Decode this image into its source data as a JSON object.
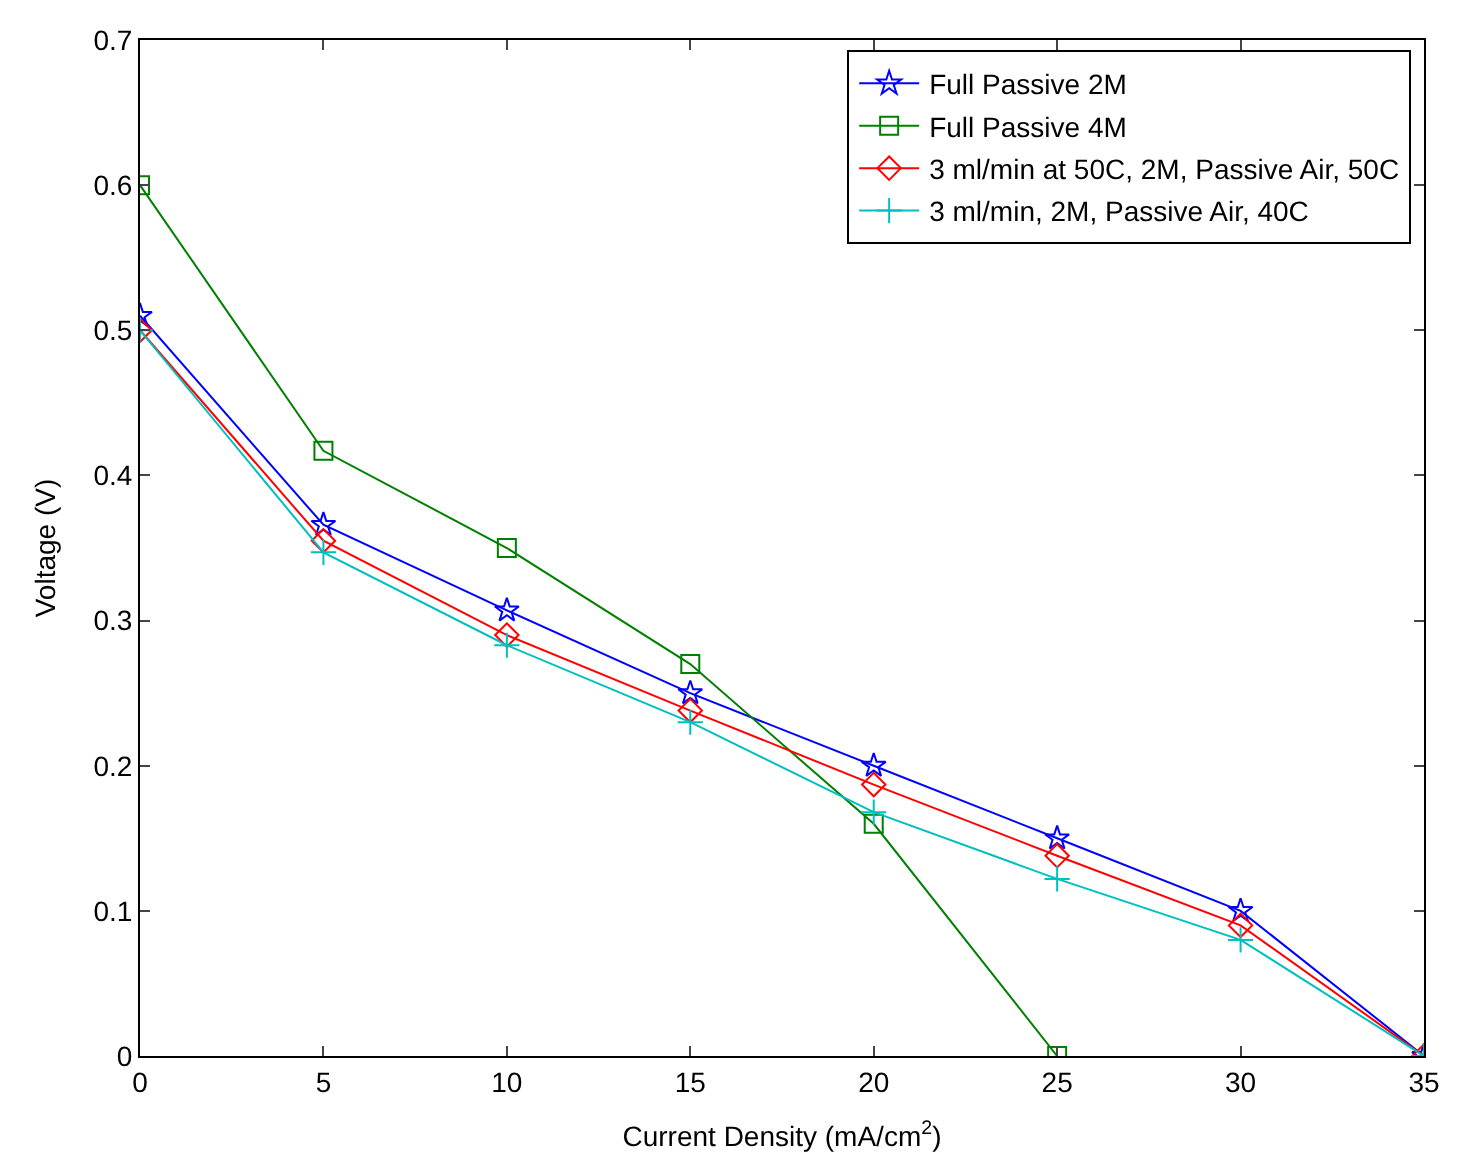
{
  "chart_data": {
    "type": "line",
    "xlabel": "Current Density (mA/cm$^{2}$)",
    "ylabel": "Voltage (V)",
    "xlim": [
      0,
      35
    ],
    "xticks": [
      0,
      5,
      10,
      15,
      20,
      25,
      30,
      35
    ],
    "ylim": [
      0,
      0.7
    ],
    "yticks": [
      0,
      0.1,
      0.2,
      0.3,
      0.4,
      0.5,
      0.6,
      0.7
    ],
    "legend": "top right",
    "line_style": "solid",
    "series": [
      {
        "name": "Full Passive 2M",
        "color": "#0000ff",
        "marker": "star",
        "x": [
          0,
          5,
          10,
          15,
          20,
          25,
          30,
          35
        ],
        "values": [
          0.51,
          0.366,
          0.307,
          0.25,
          0.2,
          0.15,
          0.1,
          0
        ]
      },
      {
        "name": "Full Passive 4M",
        "color": "#008000",
        "marker": "square",
        "x": [
          0,
          5,
          10,
          15,
          20,
          25
        ],
        "values": [
          0.6,
          0.417,
          0.35,
          0.27,
          0.16,
          0
        ]
      },
      {
        "name": "3 ml/min at 50C, 2M, Passive Air, 50C",
        "color": "#ff0000",
        "marker": "diamond",
        "x": [
          0,
          5,
          10,
          15,
          20,
          25,
          30,
          35
        ],
        "values": [
          0.5,
          0.355,
          0.29,
          0.238,
          0.187,
          0.138,
          0.09,
          0
        ]
      },
      {
        "name": "3 ml/min, 2M, Passive Air, 40C",
        "color": "#00bfbf",
        "marker": "cross",
        "x": [
          0,
          5,
          10,
          15,
          20,
          25,
          30,
          35
        ],
        "values": [
          0.5,
          0.347,
          0.283,
          0.23,
          0.168,
          0.122,
          0.08,
          0
        ]
      }
    ]
  }
}
